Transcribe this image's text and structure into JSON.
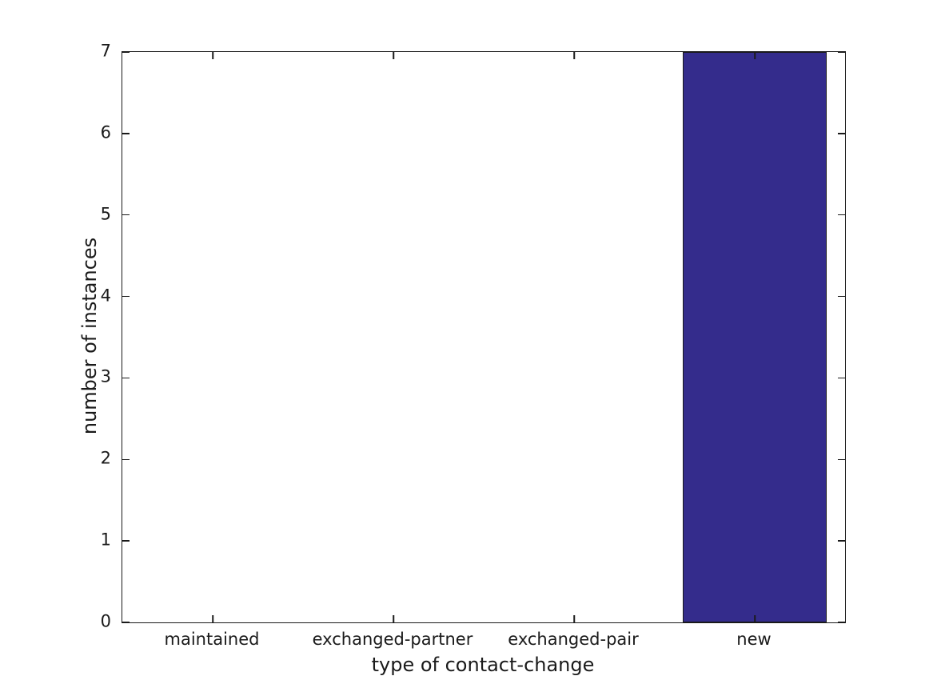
{
  "chart_data": {
    "type": "bar",
    "title": "",
    "xlabel": "type of contact-change",
    "ylabel": "number of instances",
    "categories": [
      "maintained",
      "exchanged-partner",
      "exchanged-pair",
      "new"
    ],
    "values": [
      0,
      0,
      0,
      7
    ],
    "ylim": [
      0,
      7
    ],
    "yticks": [
      0,
      1,
      2,
      3,
      4,
      5,
      6,
      7
    ],
    "bar_width_fraction": 0.8,
    "bar_color": "#342c8c",
    "bar_edge_color": "#1a1a1a",
    "axis_color": "#1a1a1a",
    "grid": false,
    "legend": "none",
    "tick_direction": "in",
    "ticks_on_all_spines": true
  }
}
